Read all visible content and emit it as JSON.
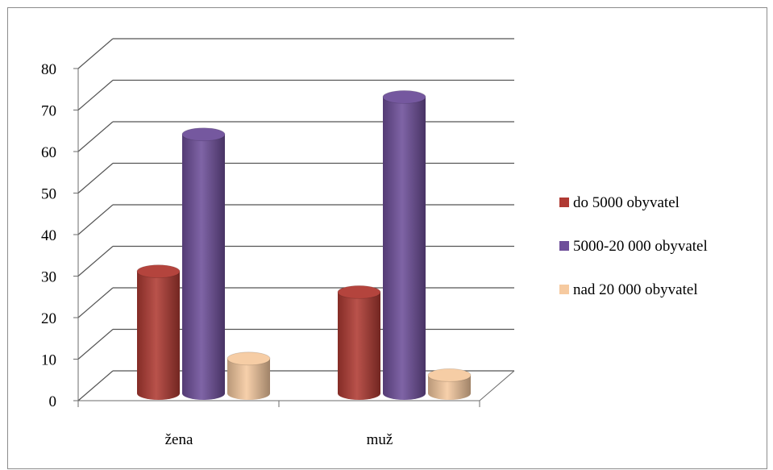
{
  "chart_data": {
    "type": "bar",
    "style": "3d-cylinder",
    "title": "",
    "xlabel": "",
    "ylabel": "",
    "categories": [
      "žena",
      "muž"
    ],
    "series": [
      {
        "name": "do 5000 obyvatel",
        "values": [
          29,
          24
        ],
        "color": "#b03a33"
      },
      {
        "name": "5000-20 000 obyvatel",
        "values": [
          62,
          71
        ],
        "color": "#6e4f9a"
      },
      {
        "name": "nad 20 000 obyvatel",
        "values": [
          8,
          4
        ],
        "color": "#f6caa0"
      }
    ],
    "ylim": [
      0,
      80
    ],
    "yticks": [
      "0",
      "10",
      "20",
      "30",
      "40",
      "50",
      "60",
      "70",
      "80"
    ],
    "grid": true,
    "legend_position": "right"
  }
}
